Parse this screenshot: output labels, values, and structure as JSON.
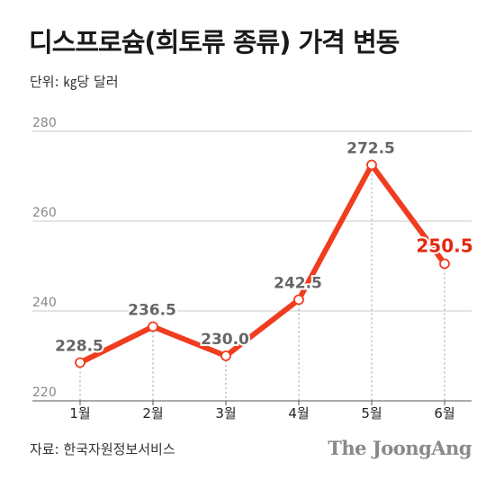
{
  "header": {
    "title": "디스프로슘(희토류 종류) 가격 변동",
    "unit": "단위: ㎏당 달러"
  },
  "footer": {
    "source": "자료: 한국자원정보서비스",
    "brand": "The JoongAng"
  },
  "colors": {
    "line": "#f03c1f",
    "highlight_label": "#e02a10",
    "label": "#666666",
    "grid": "#c9c9c9"
  },
  "chart_data": {
    "type": "line",
    "title": "디스프로슘(희토류 종류) 가격 변동",
    "unit": "단위: ㎏당 달러",
    "categories": [
      "1월",
      "2월",
      "3월",
      "4월",
      "5월",
      "6월"
    ],
    "series": [
      {
        "values": [
          228.5,
          236.5,
          230.0,
          242.5,
          272.5,
          250.5
        ]
      }
    ],
    "data_labels": [
      "228.5",
      "236.5",
      "230.0",
      "242.5",
      "272.5",
      "250.5"
    ],
    "ylim": [
      220,
      280
    ],
    "yticks": [
      220,
      240,
      260,
      280
    ],
    "grid": true,
    "highlight_last": true
  }
}
